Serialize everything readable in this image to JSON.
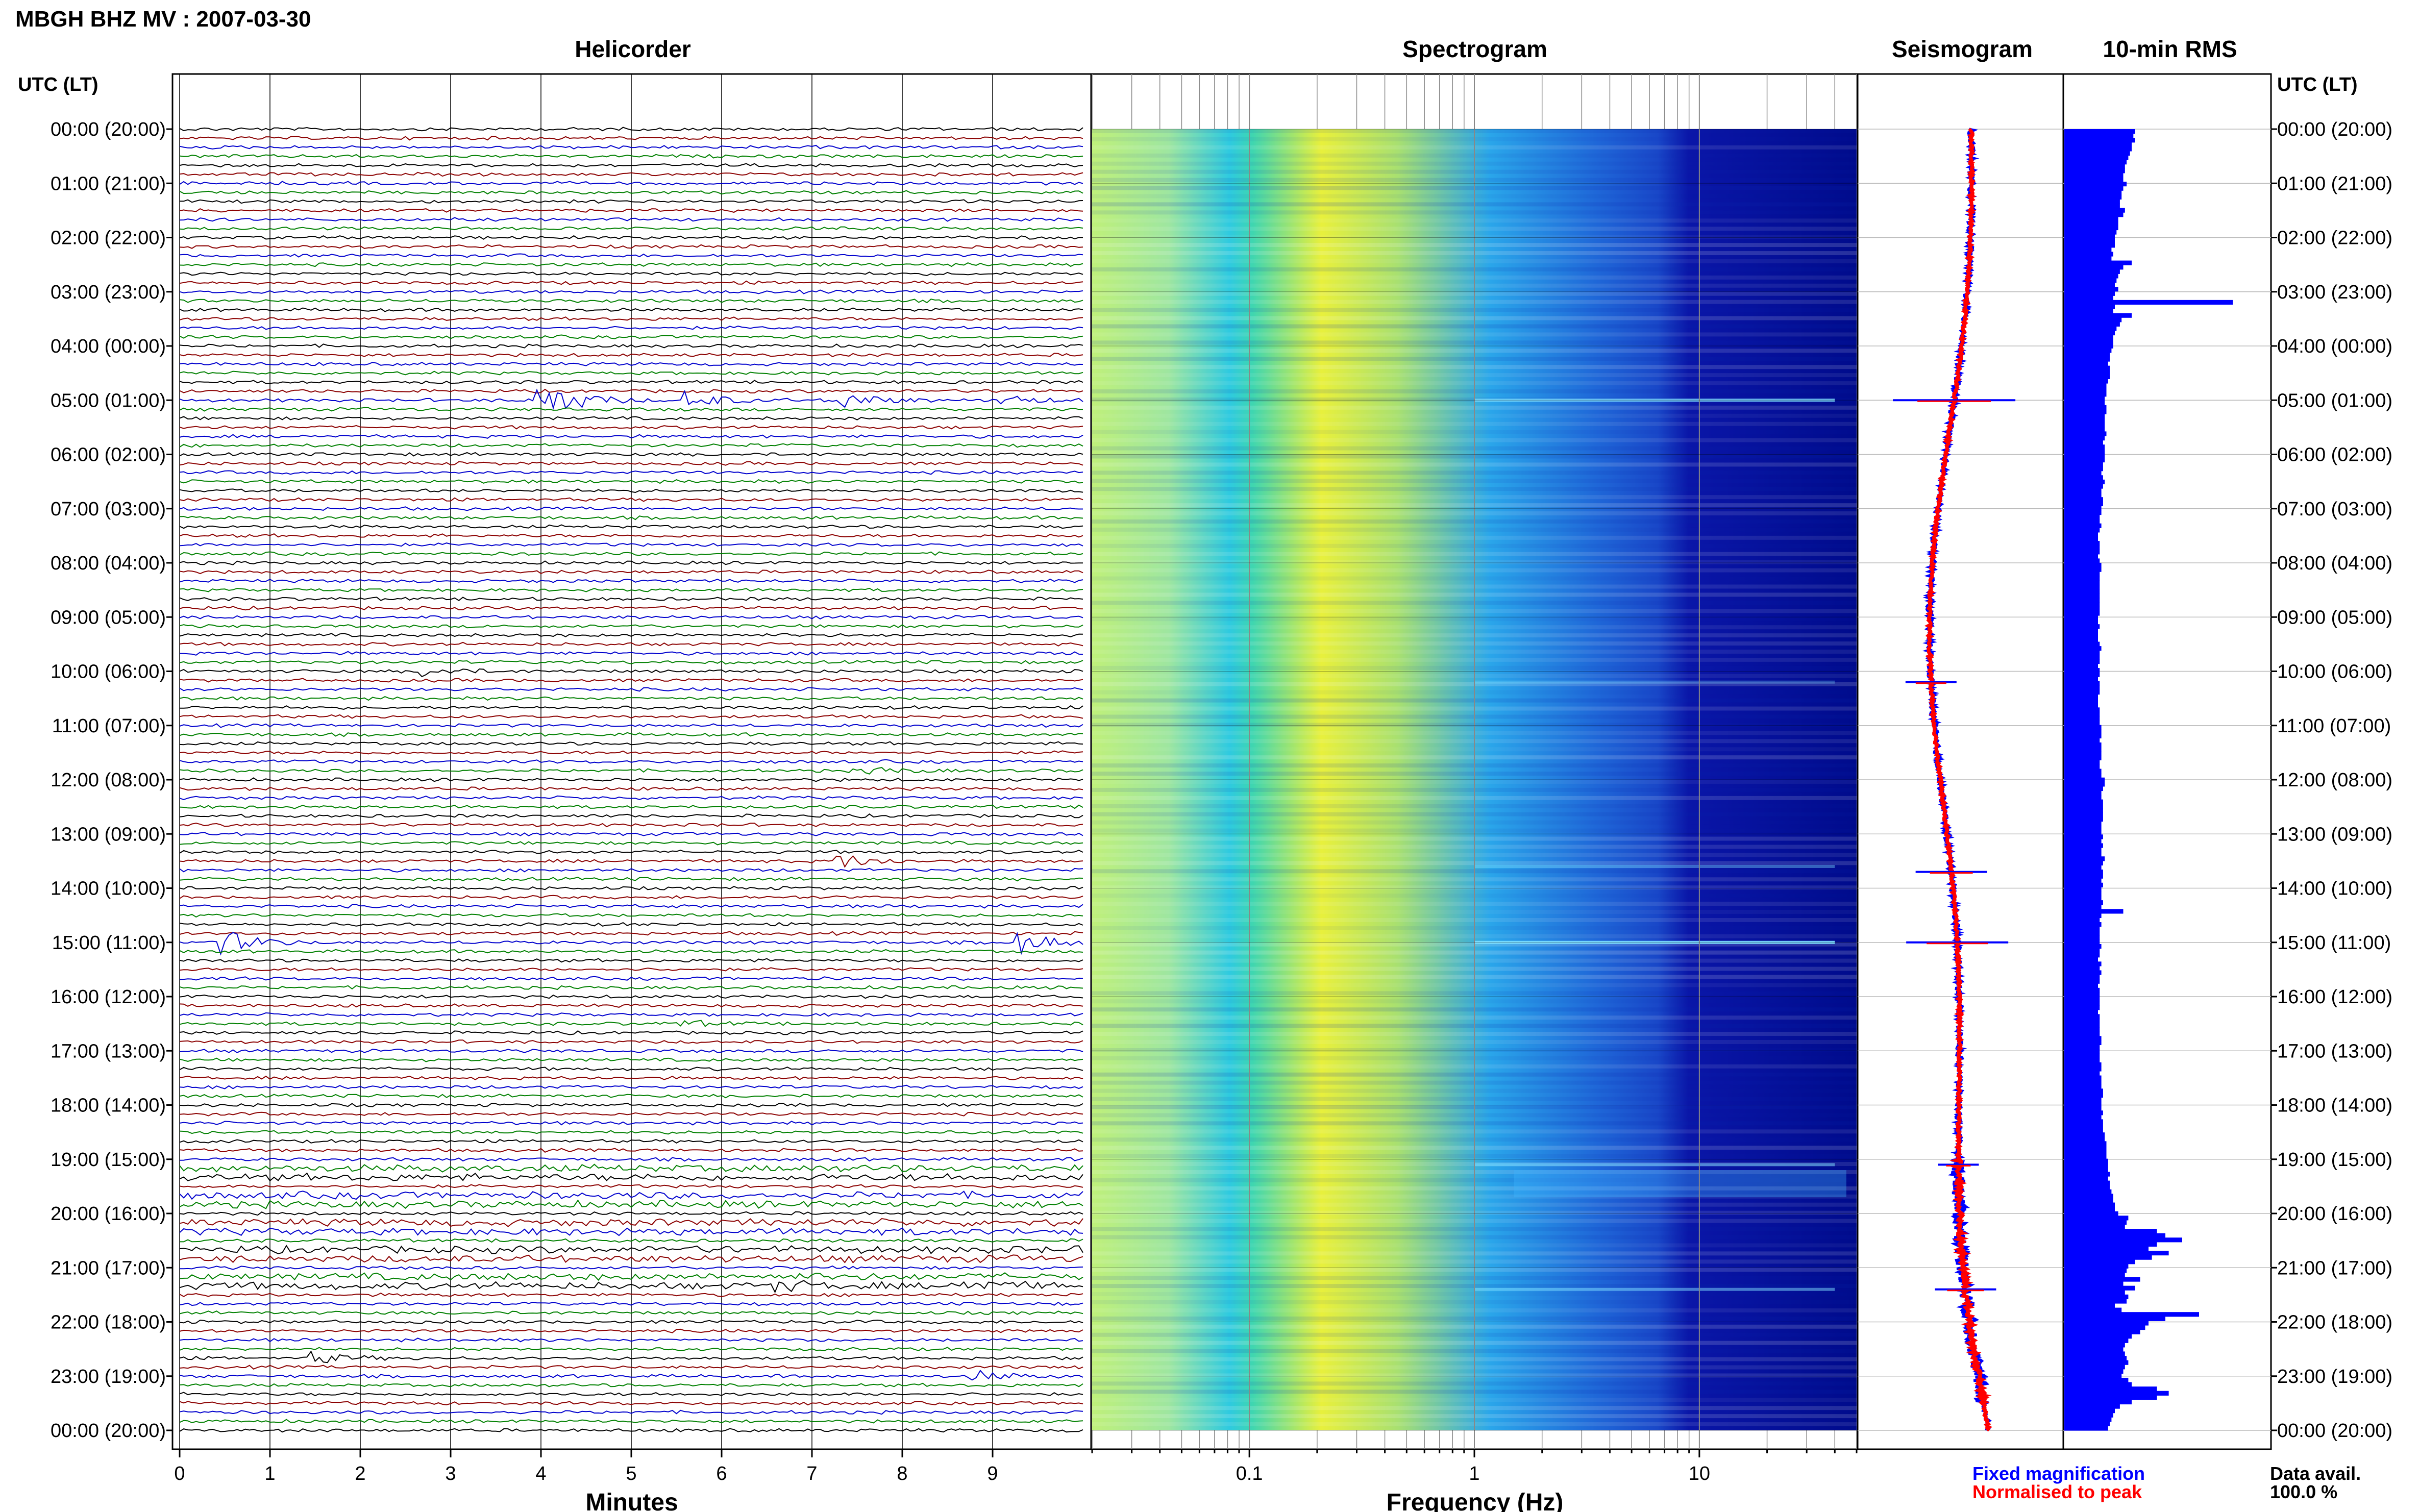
{
  "title": "MBGH BHZ MV : 2007-03-30",
  "panels": {
    "helicorder": "Helicorder",
    "spectrogram": "Spectrogram",
    "seismogram": "Seismogram",
    "rms": "10-min RMS"
  },
  "time_axis_label": "UTC (LT)",
  "time_ticks": [
    "00:00 (20:00)",
    "01:00 (21:00)",
    "02:00 (22:00)",
    "03:00 (23:00)",
    "04:00 (00:00)",
    "05:00 (01:00)",
    "06:00 (02:00)",
    "07:00 (03:00)",
    "08:00 (04:00)",
    "09:00 (05:00)",
    "10:00 (06:00)",
    "11:00 (07:00)",
    "12:00 (08:00)",
    "13:00 (09:00)",
    "14:00 (10:00)",
    "15:00 (11:00)",
    "16:00 (12:00)",
    "17:00 (13:00)",
    "18:00 (14:00)",
    "19:00 (15:00)",
    "20:00 (16:00)",
    "21:00 (17:00)",
    "22:00 (18:00)",
    "23:00 (19:00)",
    "00:00 (20:00)"
  ],
  "helicorder": {
    "xlabel": "Minutes",
    "x_ticks": [
      "0",
      "1",
      "2",
      "3",
      "4",
      "5",
      "6",
      "7",
      "8",
      "9"
    ],
    "trace_colors": [
      "#000000",
      "#8b0000",
      "#0000cd",
      "#008000"
    ],
    "events": [
      {
        "hour": 5.0,
        "minute": 4.0,
        "amp": 3.2,
        "color": "#008000"
      },
      {
        "hour": 5.0,
        "minute": 5.6,
        "amp": 1.3,
        "color": "#008000"
      },
      {
        "hour": 5.0,
        "minute": 7.2,
        "amp": 1.8,
        "color": "#008000"
      },
      {
        "hour": 5.0,
        "minute": 9.1,
        "amp": 0.8,
        "color": "#000000"
      },
      {
        "hour": 10.0,
        "minute": 2.7,
        "amp": 0.7,
        "color": "#8b0000"
      },
      {
        "hour": 11.83,
        "minute": 7.6,
        "amp": 0.6,
        "color": "#0000cd"
      },
      {
        "hour": 13.5,
        "minute": 7.3,
        "amp": 1.0,
        "color": "#8b0000"
      },
      {
        "hour": 15.0,
        "minute": 0.5,
        "amp": 1.6,
        "color": "#008000"
      },
      {
        "hour": 15.0,
        "minute": 9.3,
        "amp": 1.5,
        "color": "#0000cd"
      },
      {
        "hour": 16.5,
        "minute": 5.5,
        "amp": 0.5,
        "color": "#000000"
      },
      {
        "hour": 21.33,
        "minute": 6.6,
        "amp": 0.6,
        "color": "#000000"
      },
      {
        "hour": 21.33,
        "minute": 8.7,
        "amp": 0.8,
        "color": "#008000"
      },
      {
        "hour": 22.67,
        "minute": 1.5,
        "amp": 0.7,
        "color": "#000000"
      },
      {
        "hour": 23.0,
        "minute": 8.8,
        "amp": 0.7,
        "color": "#0000cd"
      }
    ]
  },
  "spectrogram": {
    "xlabel": "Frequency (Hz)",
    "x_ticks": [
      "0.1",
      "1",
      "10"
    ],
    "scale": "log",
    "xlim": [
      0.02,
      50
    ]
  },
  "seismogram": {
    "legend": [
      "Fixed magnification",
      "Normalised to peak"
    ],
    "legend_colors": [
      "#0000ff",
      "#ff0000"
    ]
  },
  "footer": {
    "label": "Data avail.",
    "value": "100.0 %"
  },
  "chart_data": {
    "type": "bar",
    "title": "10-min RMS",
    "orientation": "horizontal",
    "interval_minutes": 10,
    "values": [
      0.42,
      0.41,
      0.42,
      0.4,
      0.4,
      0.39,
      0.38,
      0.37,
      0.36,
      0.36,
      0.35,
      0.35,
      0.37,
      0.35,
      0.34,
      0.34,
      0.33,
      0.33,
      0.36,
      0.35,
      0.32,
      0.32,
      0.32,
      0.31,
      0.3,
      0.3,
      0.3,
      0.28,
      0.29,
      0.28,
      0.4,
      0.35,
      0.33,
      0.32,
      0.31,
      0.3,
      0.32,
      0.3,
      0.29,
      1.0,
      0.3,
      0.29,
      0.4,
      0.34,
      0.33,
      0.31,
      0.3,
      0.29,
      0.29,
      0.29,
      0.28,
      0.27,
      0.27,
      0.26,
      0.27,
      0.27,
      0.27,
      0.26,
      0.25,
      0.25,
      0.25,
      0.24,
      0.24,
      0.25,
      0.25,
      0.24,
      0.24,
      0.24,
      0.24,
      0.25,
      0.24,
      0.23,
      0.24,
      0.24,
      0.24,
      0.24,
      0.23,
      0.23,
      0.22,
      0.23,
      0.24,
      0.23,
      0.22,
      0.22,
      0.23,
      0.23,
      0.22,
      0.22,
      0.21,
      0.21,
      0.22,
      0.21,
      0.2,
      0.2,
      0.21,
      0.21,
      0.21,
      0.2,
      0.21,
      0.22,
      0.22,
      0.21,
      0.21,
      0.21,
      0.21,
      0.21,
      0.21,
      0.21,
      0.21,
      0.21,
      0.21,
      0.2,
      0.2,
      0.21,
      0.2,
      0.2,
      0.2,
      0.21,
      0.22,
      0.21,
      0.21,
      0.21,
      0.2,
      0.21,
      0.21,
      0.2,
      0.21,
      0.21,
      0.21,
      0.2,
      0.2,
      0.2,
      0.21,
      0.21,
      0.21,
      0.21,
      0.22,
      0.22,
      0.22,
      0.21,
      0.22,
      0.22,
      0.22,
      0.22,
      0.21,
      0.21,
      0.22,
      0.22,
      0.24,
      0.24,
      0.23,
      0.22,
      0.22,
      0.23,
      0.23,
      0.23,
      0.23,
      0.23,
      0.22,
      0.22,
      0.22,
      0.23,
      0.22,
      0.23,
      0.22,
      0.22,
      0.24,
      0.23,
      0.22,
      0.23,
      0.23,
      0.22,
      0.23,
      0.22,
      0.22,
      0.22,
      0.23,
      0.22,
      0.35,
      0.22,
      0.21,
      0.22,
      0.21,
      0.21,
      0.21,
      0.21,
      0.22,
      0.21,
      0.21,
      0.2,
      0.22,
      0.21,
      0.22,
      0.21,
      0.21,
      0.2,
      0.21,
      0.21,
      0.21,
      0.21,
      0.21,
      0.2,
      0.21,
      0.21,
      0.21,
      0.21,
      0.21,
      0.22,
      0.22,
      0.21,
      0.21,
      0.21,
      0.21,
      0.22,
      0.22,
      0.21,
      0.22,
      0.22,
      0.22,
      0.23,
      0.23,
      0.22,
      0.22,
      0.22,
      0.23,
      0.22,
      0.23,
      0.23,
      0.23,
      0.24,
      0.24,
      0.25,
      0.25,
      0.25,
      0.25,
      0.26,
      0.26,
      0.26,
      0.27,
      0.26,
      0.27,
      0.27,
      0.28,
      0.29,
      0.29,
      0.3,
      0.3,
      0.32,
      0.38,
      0.37,
      0.36,
      0.55,
      0.6,
      0.7,
      0.55,
      0.5,
      0.62,
      0.52,
      0.42,
      0.38,
      0.37,
      0.36,
      0.45,
      0.35,
      0.42,
      0.36,
      0.38,
      0.37,
      0.3,
      0.34,
      0.8,
      0.6,
      0.5,
      0.48,
      0.45,
      0.4,
      0.38,
      0.36,
      0.35,
      0.36,
      0.37,
      0.38,
      0.36,
      0.35,
      0.34,
      0.38,
      0.4,
      0.55,
      0.62,
      0.55,
      0.4,
      0.33,
      0.3,
      0.29,
      0.28,
      0.27,
      0.26
    ]
  }
}
